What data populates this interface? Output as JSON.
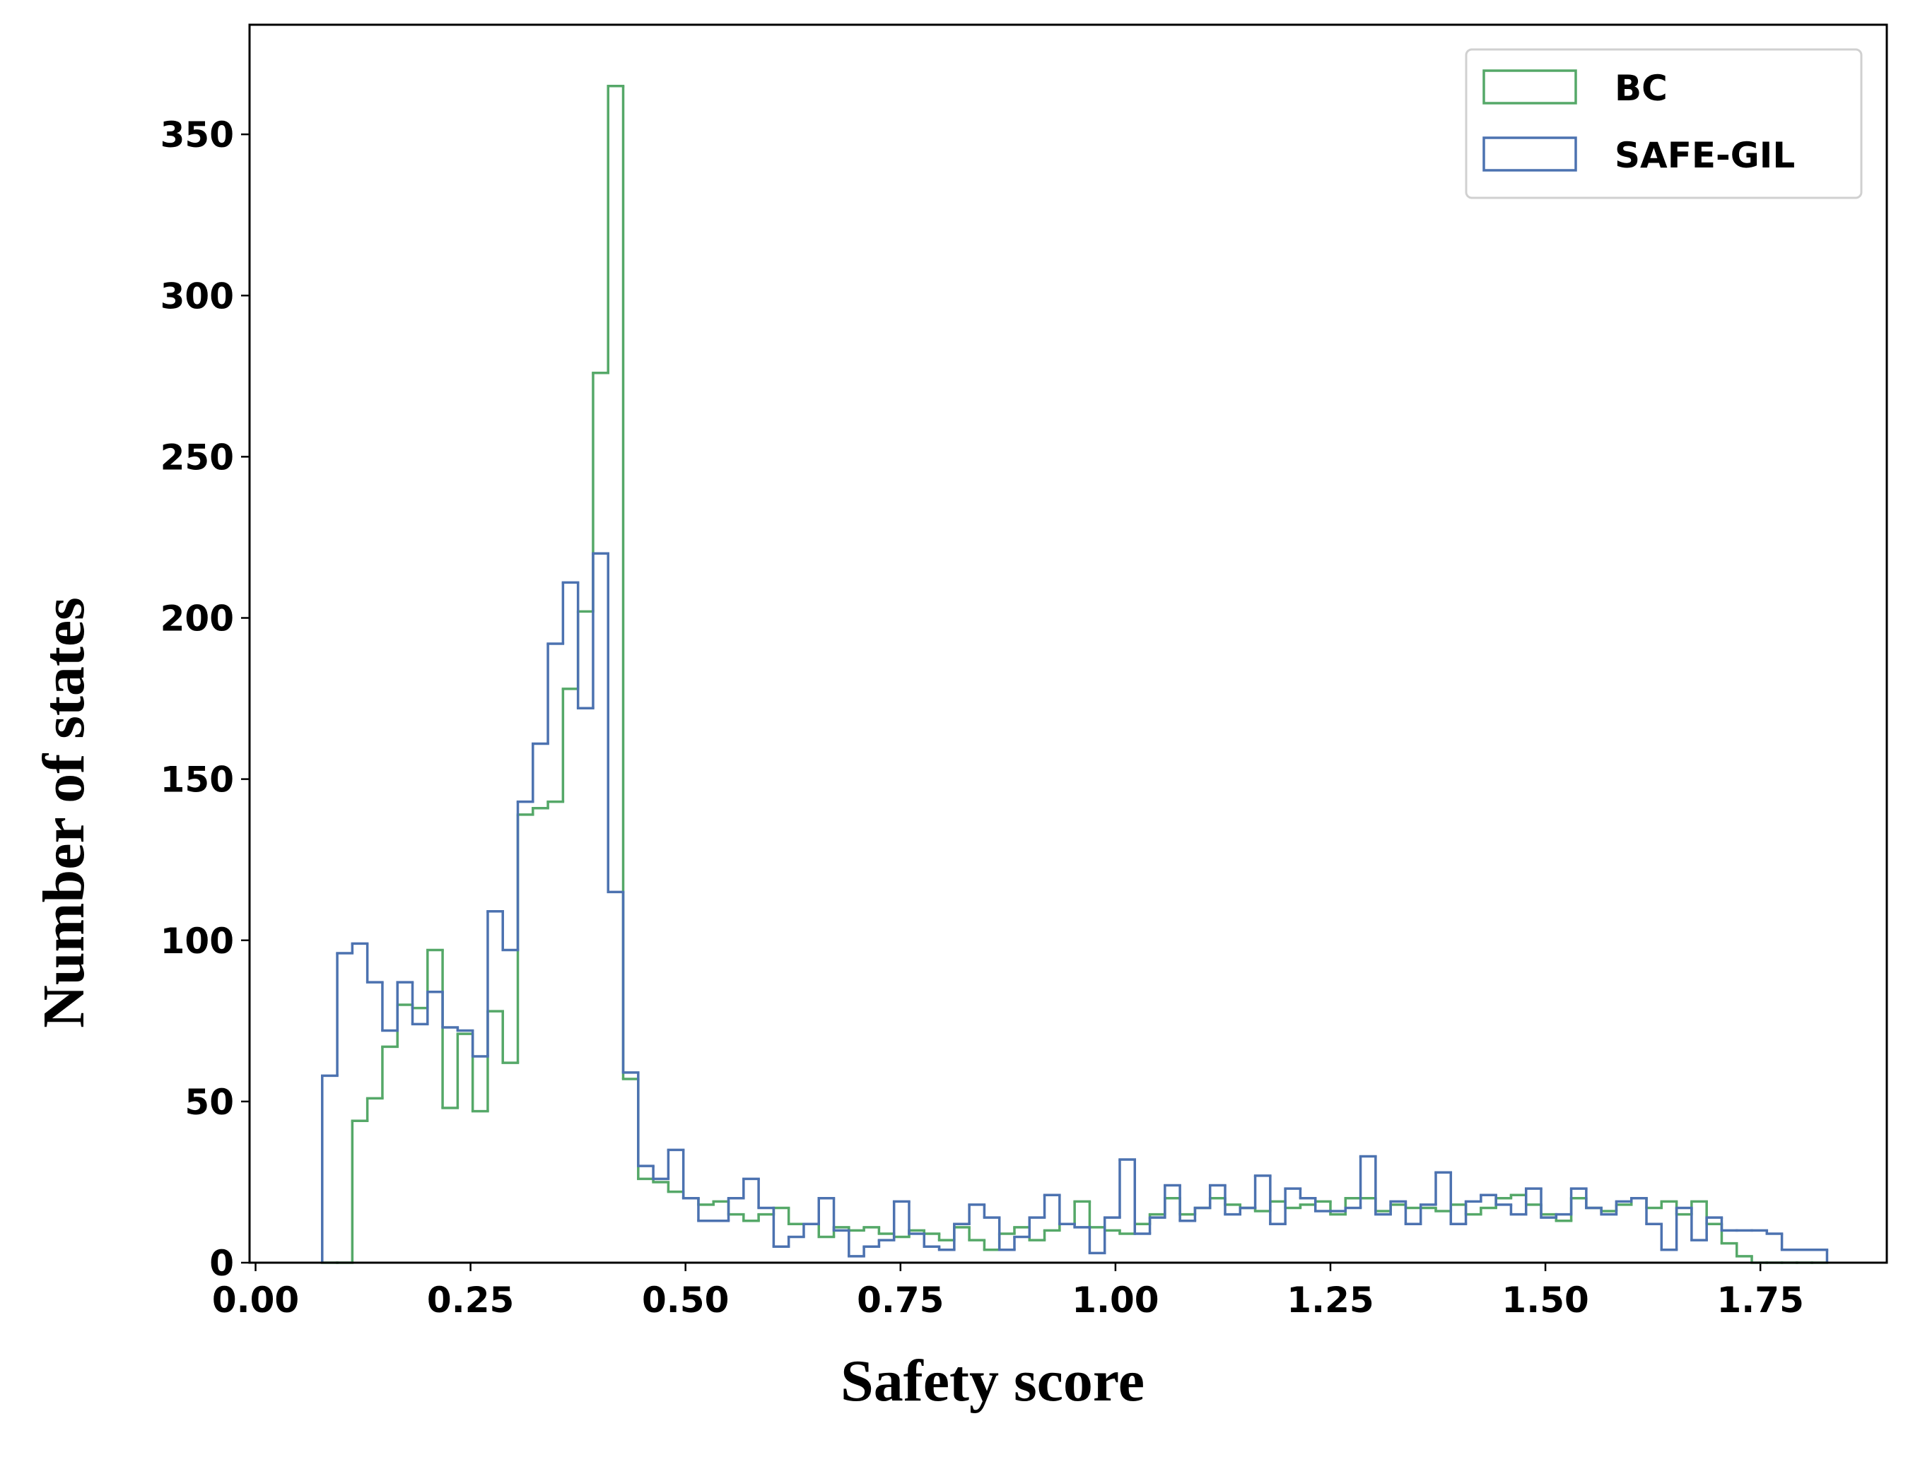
{
  "chart_data": {
    "type": "histogram",
    "xlabel": "Safety score",
    "ylabel": "Number of states",
    "bins": [
      0.0775,
      0.095,
      0.1125,
      0.13,
      0.1475,
      0.165,
      0.1825,
      0.2,
      0.2175,
      0.235,
      0.2525,
      0.27,
      0.2875,
      0.305,
      0.3225,
      0.34,
      0.3575,
      0.375,
      0.3925,
      0.41,
      0.4275,
      0.445,
      0.4625,
      0.48,
      0.4975,
      0.515,
      0.5325,
      0.55,
      0.5675,
      0.585,
      0.6025,
      0.62,
      0.6375,
      0.655,
      0.6725,
      0.69,
      0.7075,
      0.725,
      0.7425,
      0.76,
      0.7775,
      0.795,
      0.8125,
      0.83,
      0.8475,
      0.865,
      0.8825,
      0.9,
      0.9175,
      0.935,
      0.9525,
      0.97,
      0.9875,
      1.005,
      1.0225,
      1.04,
      1.0575,
      1.075,
      1.0925,
      1.11,
      1.1275,
      1.145,
      1.1625,
      1.18,
      1.1975,
      1.215,
      1.2325,
      1.25,
      1.2675,
      1.285,
      1.3025,
      1.32,
      1.3375,
      1.355,
      1.3725,
      1.39,
      1.4075,
      1.425,
      1.4425,
      1.46,
      1.4775,
      1.495,
      1.5125,
      1.53,
      1.5475,
      1.565,
      1.5825,
      1.6,
      1.6175,
      1.635,
      1.6525,
      1.67,
      1.6875,
      1.705,
      1.7225,
      1.74,
      1.7575,
      1.775,
      1.7925,
      1.81,
      1.8275
    ],
    "series": [
      {
        "name": "BC",
        "color": "#55a868",
        "values": [
          0,
          0,
          44,
          51,
          67,
          80,
          79,
          97,
          48,
          71,
          47,
          78,
          62,
          139,
          141,
          143,
          178,
          202,
          276,
          365,
          57,
          26,
          25,
          22,
          20,
          18,
          19,
          15,
          13,
          15,
          17,
          12,
          12,
          8,
          11,
          10,
          11,
          9,
          8,
          10,
          9,
          7,
          11,
          7,
          4,
          9,
          11,
          7,
          10,
          12,
          19,
          11,
          10,
          9,
          12,
          15,
          20,
          15,
          17,
          20,
          18,
          17,
          16,
          19,
          17,
          18,
          19,
          15,
          20,
          20,
          16,
          18,
          17,
          17,
          16,
          18,
          15,
          17,
          20,
          21,
          18,
          15,
          13,
          20,
          17,
          16,
          18,
          20,
          17,
          19,
          15,
          19,
          12,
          6,
          2,
          0,
          0,
          0,
          0,
          0
        ]
      },
      {
        "name": "SAFE-GIL",
        "color": "#4c72b0",
        "values": [
          58,
          96,
          99,
          87,
          72,
          87,
          74,
          84,
          73,
          72,
          64,
          109,
          97,
          143,
          161,
          192,
          211,
          172,
          220,
          115,
          59,
          30,
          26,
          35,
          20,
          13,
          13,
          20,
          26,
          17,
          5,
          8,
          12,
          20,
          10,
          2,
          5,
          7,
          19,
          9,
          5,
          4,
          12,
          18,
          14,
          4,
          8,
          14,
          21,
          12,
          11,
          3,
          14,
          32,
          9,
          14,
          24,
          13,
          17,
          24,
          15,
          17,
          27,
          12,
          23,
          20,
          16,
          16,
          17,
          33,
          15,
          19,
          12,
          18,
          28,
          12,
          19,
          21,
          18,
          15,
          23,
          14,
          15,
          23,
          17,
          15,
          19,
          20,
          12,
          4,
          17,
          7,
          14,
          10,
          10,
          10,
          9,
          4,
          4,
          4
        ]
      }
    ],
    "xlim": [
      -0.007,
      1.897
    ],
    "ylim": [
      0,
      384
    ],
    "xticks": [
      {
        "value": 0,
        "label": "0.00"
      },
      {
        "value": 0.25,
        "label": "0.25"
      },
      {
        "value": 0.5,
        "label": "0.50"
      },
      {
        "value": 0.75,
        "label": "0.75"
      },
      {
        "value": 1,
        "label": "1.00"
      },
      {
        "value": 1.25,
        "label": "1.25"
      },
      {
        "value": 1.5,
        "label": "1.50"
      },
      {
        "value": 1.75,
        "label": "1.75"
      }
    ],
    "yticks": [
      0,
      50,
      100,
      150,
      200,
      250,
      300,
      350
    ],
    "legend": "upper right"
  }
}
